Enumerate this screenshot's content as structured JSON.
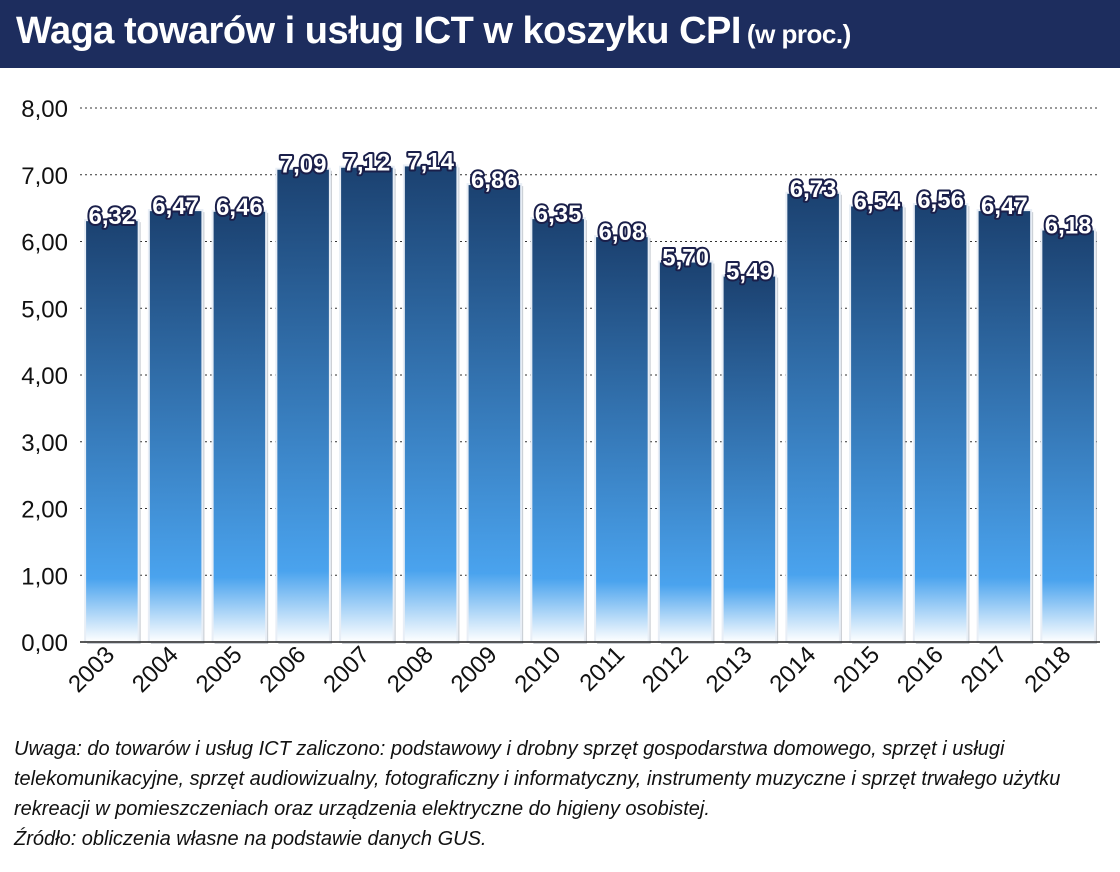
{
  "title": {
    "main": "Waga towarów i usług ICT w koszyku CPI",
    "sub": "(w proc.)"
  },
  "chart_data": {
    "type": "bar",
    "categories": [
      "2003",
      "2004",
      "2005",
      "2006",
      "2007",
      "2008",
      "2009",
      "2010",
      "2011",
      "2012",
      "2013",
      "2014",
      "2015",
      "2016",
      "2017",
      "2018"
    ],
    "values": [
      6.32,
      6.47,
      6.46,
      7.09,
      7.12,
      7.14,
      6.86,
      6.35,
      6.08,
      5.7,
      5.49,
      6.73,
      6.54,
      6.56,
      6.47,
      6.18
    ],
    "value_labels": [
      "6,32",
      "6,47",
      "6,46",
      "7,09",
      "7,12",
      "7,14",
      "6,86",
      "6,35",
      "6,08",
      "5,70",
      "5,49",
      "6,73",
      "6,54",
      "6,56",
      "6,47",
      "6,18"
    ],
    "ylim": [
      0,
      8
    ],
    "yticks": [
      0,
      1,
      2,
      3,
      4,
      5,
      6,
      7,
      8
    ],
    "ytick_labels": [
      "0,00",
      "1,00",
      "2,00",
      "3,00",
      "4,00",
      "5,00",
      "6,00",
      "7,00",
      "8,00"
    ],
    "grid": true,
    "bar_color_top": "#1b4170",
    "bar_color_bottom": "#4aa3ee"
  },
  "notes": {
    "uwaga": "Uwaga: do towarów i usług ICT zaliczono: podstawowy i drobny sprzęt gospodarstwa domowego, sprzęt i usługi telekomunikacyjne, sprzęt audiowizualny, fotograficzny i informatyczny, instrumenty muzyczne i sprzęt trwałego użytku rekreacji w pomieszczeniach oraz urządzenia elektryczne do higieny osobistej.",
    "zrodlo": "Źródło: obliczenia własne na podstawie danych GUS."
  }
}
